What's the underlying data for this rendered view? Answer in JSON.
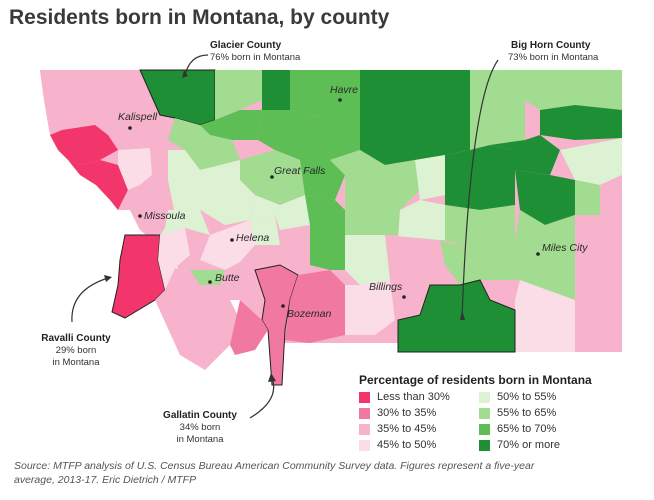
{
  "title": "Residents born in Montana, by county",
  "legend": {
    "title": "Percentage of residents born in Montana",
    "items": [
      {
        "label": "Less than 30%",
        "color": "#f2356b"
      },
      {
        "label": "30% to 35%",
        "color": "#f178a0"
      },
      {
        "label": "35% to 45%",
        "color": "#f6b3cb"
      },
      {
        "label": "45% to 50%",
        "color": "#fbdde7"
      },
      {
        "label": "50% to 55%",
        "color": "#dcf2d3"
      },
      {
        "label": "55% to 65%",
        "color": "#a1dc90"
      },
      {
        "label": "65% to 70%",
        "color": "#5cbe54"
      },
      {
        "label": "70% or more",
        "color": "#1f8f35"
      }
    ]
  },
  "cities": [
    "Kalispell",
    "Havre",
    "Great Falls",
    "Missoula",
    "Helena",
    "Butte",
    "Bozeman",
    "Billings",
    "Miles City"
  ],
  "callouts": {
    "glacier": {
      "title": "Glacier County",
      "sub": "76% born in Montana"
    },
    "bighorn": {
      "title": "Big Horn County",
      "sub": "73% born in Montana"
    },
    "ravalli": {
      "title": "Ravalli County",
      "sub1": "29% born",
      "sub2": "in Montana"
    },
    "gallatin": {
      "title": "Gallatin County",
      "sub1": "34% born",
      "sub2": "in Montana"
    }
  },
  "source": {
    "line1": "Source: MTFP analysis of U.S. Census Bureau American Community Survey data. Figures represent a five-year",
    "line2": "average, 2013-17. Eric Dietrich / MTFP"
  }
}
